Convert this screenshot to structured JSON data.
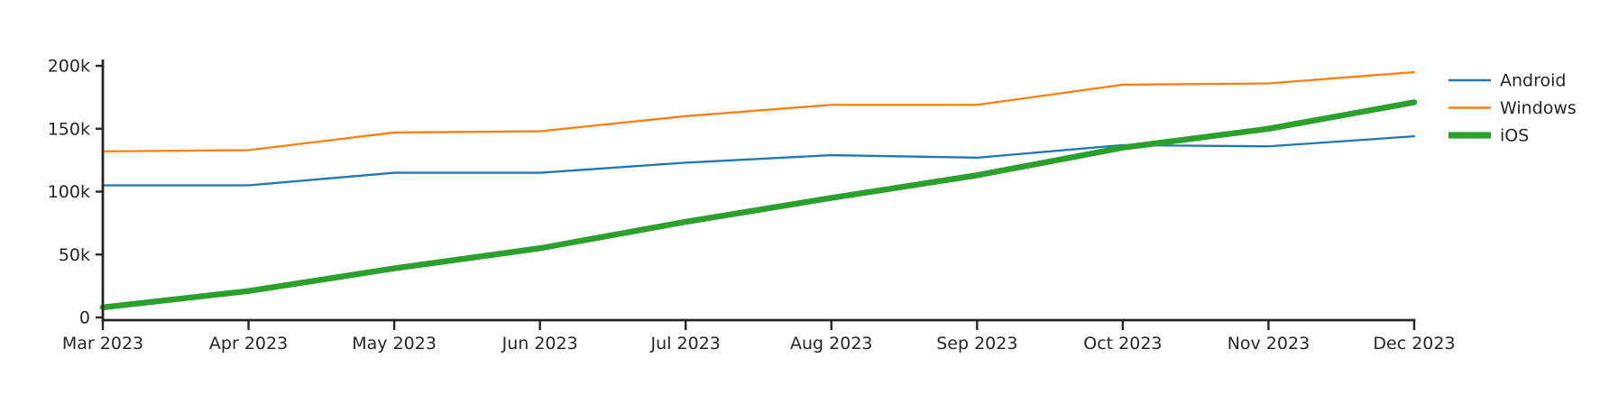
{
  "chart_data": {
    "type": "line",
    "title": "",
    "xlabel": "",
    "ylabel": "",
    "grid": false,
    "background_color": "#ffffff",
    "axis_color": "#262626",
    "text_color": "#262626",
    "x_labels": [
      "Mar 2023",
      "Apr 2023",
      "May 2023",
      "Jun 2023",
      "Jul 2023",
      "Aug 2023",
      "Sep 2023",
      "Oct 2023",
      "Nov 2023",
      "Dec 2023"
    ],
    "y_ticks": [
      {
        "value": 0,
        "label": "0"
      },
      {
        "value": 50000,
        "label": "50k"
      },
      {
        "value": 100000,
        "label": "100k"
      },
      {
        "value": 150000,
        "label": "150k"
      },
      {
        "value": 200000,
        "label": "200k"
      }
    ],
    "ylim": [
      0,
      200000
    ],
    "legend": {
      "position": "outside-top-right"
    },
    "series": [
      {
        "name": "Android",
        "color": "#1f77b4",
        "line_width": 2.3,
        "values": [
          105000,
          105000,
          115000,
          115000,
          123000,
          129000,
          127000,
          137000,
          136000,
          144000
        ]
      },
      {
        "name": "Windows",
        "color": "#ff7f0e",
        "line_width": 2.3,
        "values": [
          132000,
          133000,
          147000,
          148000,
          160000,
          169000,
          169000,
          185000,
          186000,
          195000
        ]
      },
      {
        "name": "iOS",
        "color": "#2ca02c",
        "line_width": 6.5,
        "values": [
          8000,
          21000,
          39000,
          55000,
          76000,
          95000,
          113000,
          135000,
          150000,
          171000
        ]
      }
    ]
  }
}
